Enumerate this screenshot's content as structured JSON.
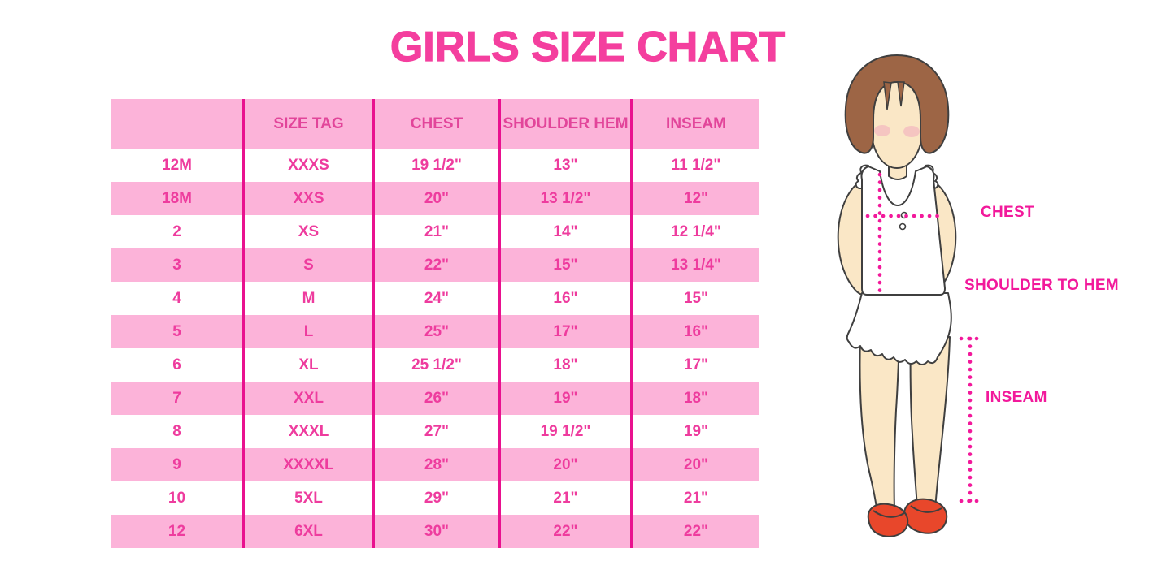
{
  "title": "GIRLS SIZE CHART",
  "chart_data": {
    "type": "table",
    "title": "GIRLS SIZE CHART",
    "columns": [
      "",
      "SIZE TAG",
      "CHEST",
      "SHOULDER HEM",
      "INSEAM"
    ],
    "rows": [
      [
        "12M",
        "XXXS",
        "19 1/2\"",
        "13\"",
        "11 1/2\""
      ],
      [
        "18M",
        "XXS",
        "20\"",
        "13 1/2\"",
        "12\""
      ],
      [
        "2",
        "XS",
        "21\"",
        "14\"",
        "12 1/4\""
      ],
      [
        "3",
        "S",
        "22\"",
        "15\"",
        "13 1/4\""
      ],
      [
        "4",
        "M",
        "24\"",
        "16\"",
        "15\""
      ],
      [
        "5",
        "L",
        "25\"",
        "17\"",
        "16\""
      ],
      [
        "6",
        "XL",
        "25 1/2\"",
        "18\"",
        "17\""
      ],
      [
        "7",
        "XXL",
        "26\"",
        "19\"",
        "18\""
      ],
      [
        "8",
        "XXXL",
        "27\"",
        "19 1/2\"",
        "19\""
      ],
      [
        "9",
        "XXXXL",
        "28\"",
        "20\"",
        "20\""
      ],
      [
        "10",
        "5XL",
        "29\"",
        "21\"",
        "21\""
      ],
      [
        "12",
        "6XL",
        "30\"",
        "22\"",
        "22\""
      ]
    ],
    "banded_row_indices": [
      1,
      3,
      5,
      7,
      9,
      11
    ],
    "header_background": "#FCB3D9",
    "grid": "vertical-dividers-only"
  },
  "diagram": {
    "labels": {
      "chest": "CHEST",
      "shoulder_to_hem": "SHOULDER TO HEM",
      "inseam": "INSEAM"
    }
  },
  "colors": {
    "title_pink": "#F43F9E",
    "band_pink": "#FCB3D9",
    "text_pink": "#EE3C9E",
    "divider_magenta": "#E9118F",
    "label_pink": "#F2199B",
    "hair_brown": "#9D6545",
    "skin": "#FAE7C6",
    "blush": "#F2AFBE",
    "shoe_red": "#E8472B",
    "outline_dark": "#3F3F3F",
    "garment_white": "#FFFFFF"
  }
}
